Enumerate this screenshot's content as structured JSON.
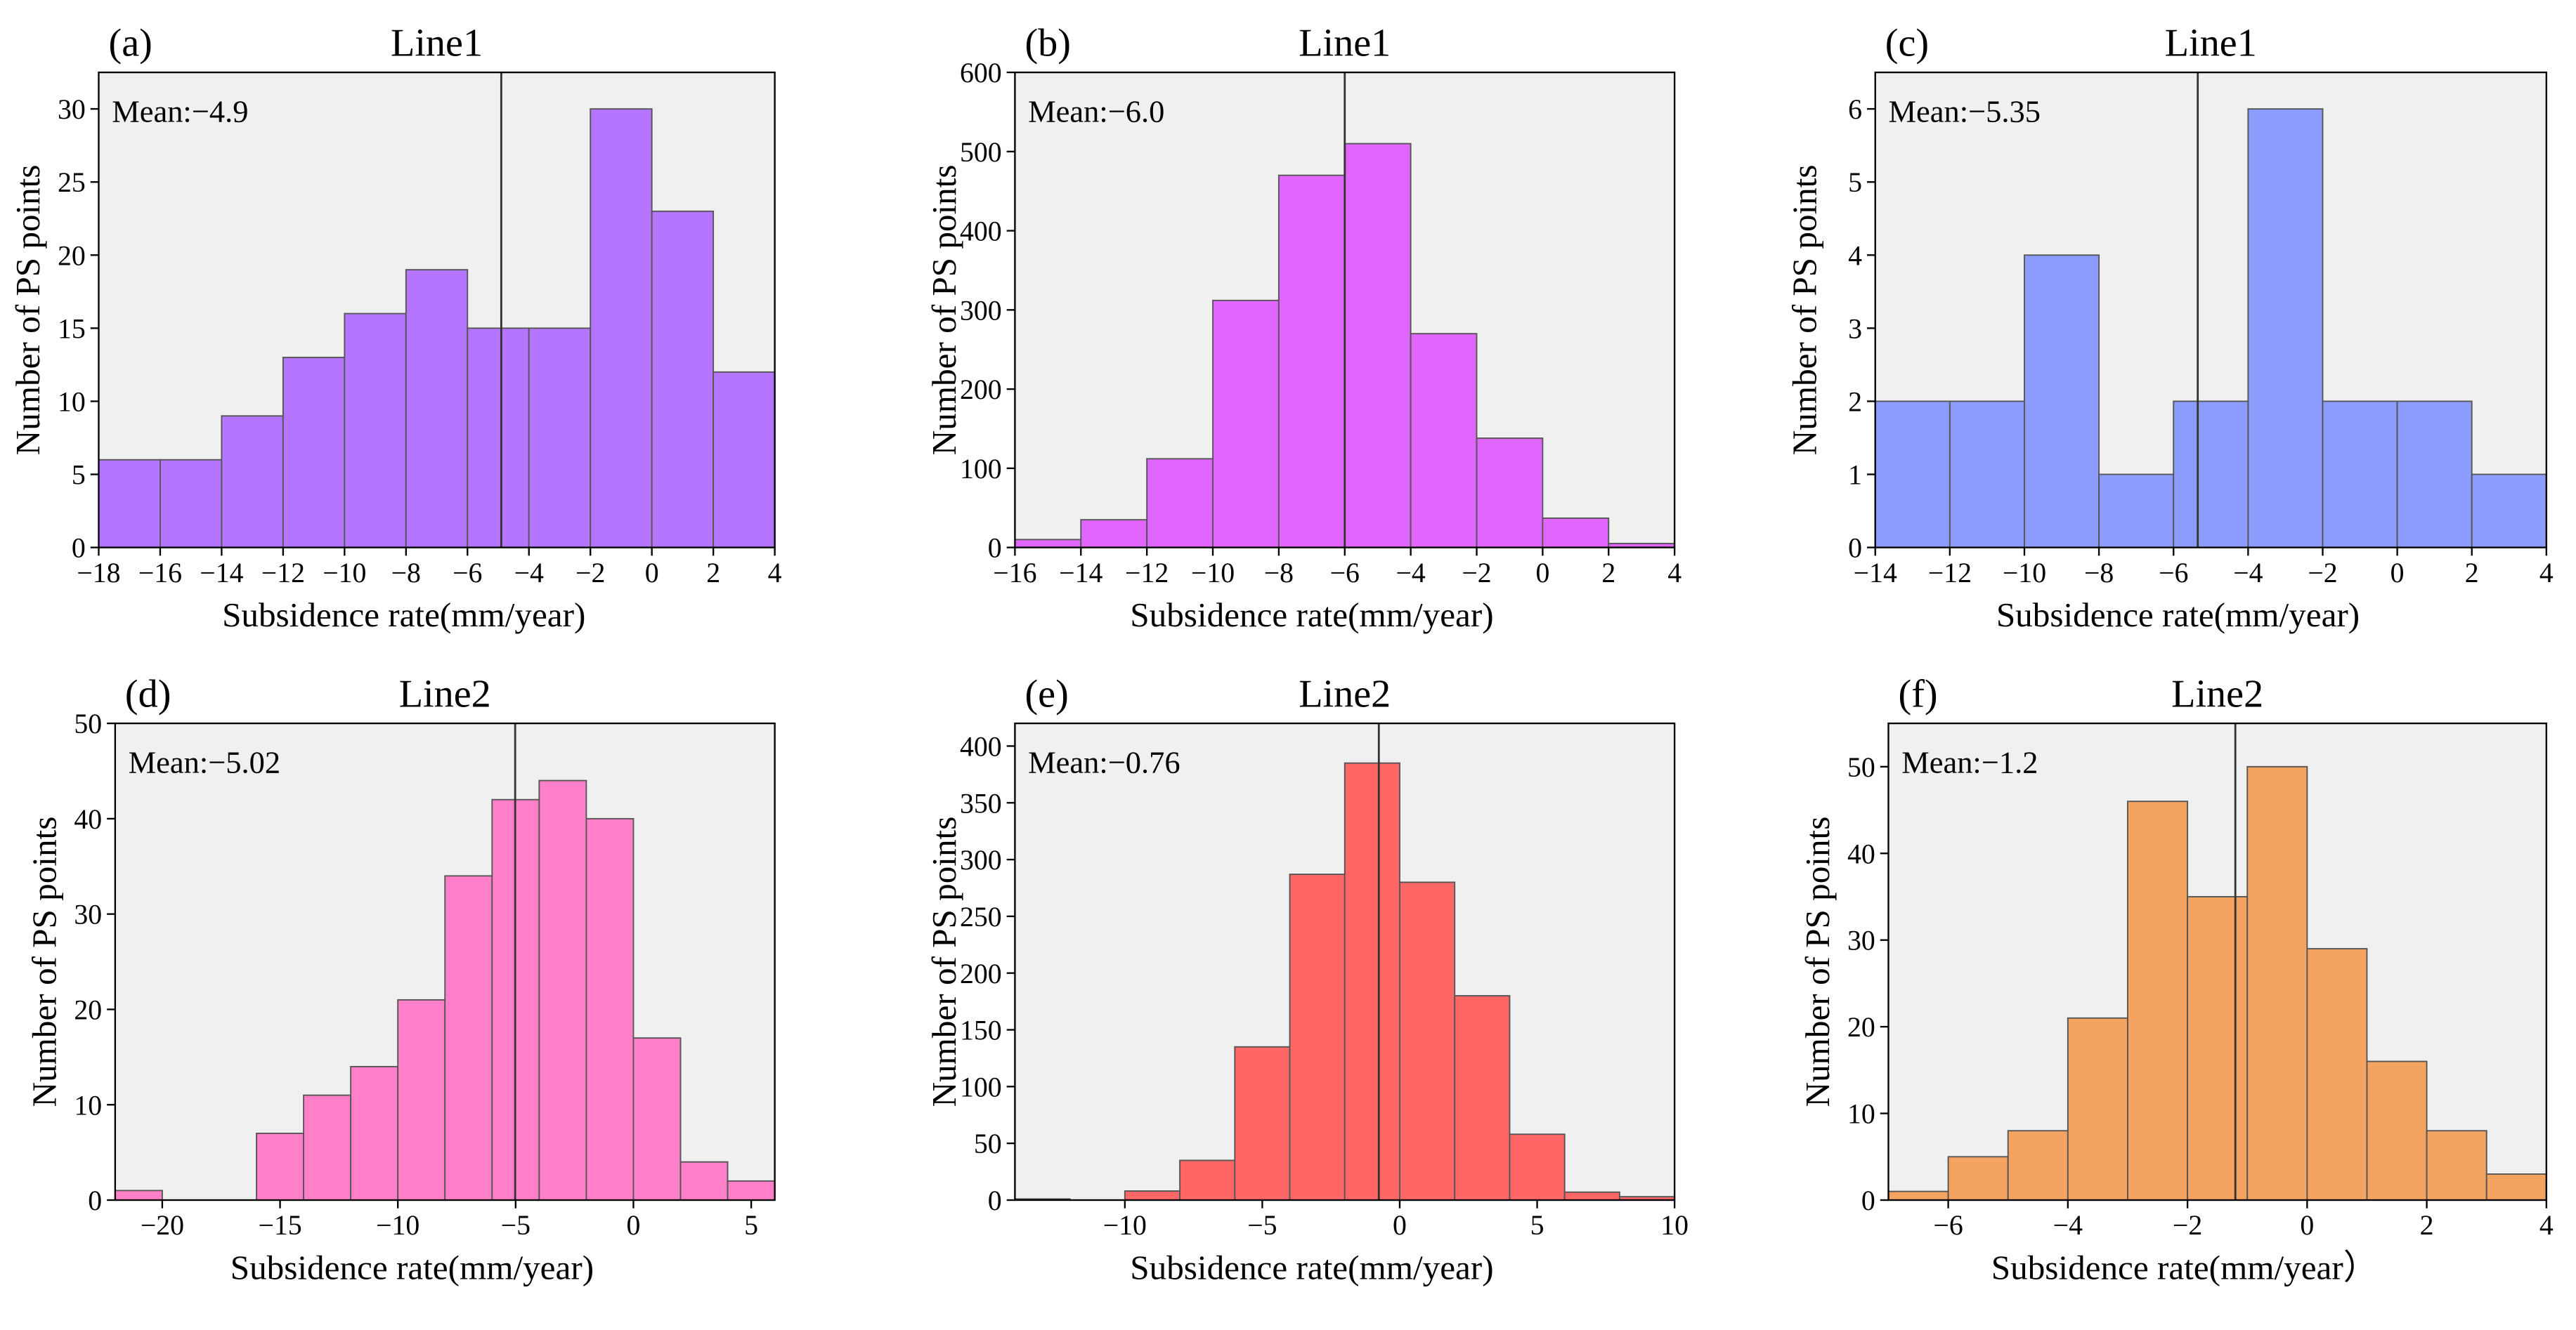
{
  "chart_data": [
    {
      "type": "histogram",
      "panel_label": "(a)",
      "title": "Line1",
      "x_label": "Subsidence rate(mm/year)",
      "y_label": "Number of PS points",
      "mean": -4.9,
      "mean_label": "Mean:−4.9",
      "color": "#b575ff",
      "bins": [
        -18,
        -16,
        -14,
        -12,
        -10,
        -8,
        -6,
        -4,
        -2,
        0,
        2,
        4
      ],
      "values": [
        6,
        6,
        9,
        13,
        16,
        19,
        15,
        15,
        30,
        23,
        12
      ],
      "xlim": [
        -18,
        4
      ],
      "xticks": [
        {
          "value": -18,
          "label": "−18"
        },
        {
          "value": -16,
          "label": "−16"
        },
        {
          "value": -14,
          "label": "−14"
        },
        {
          "value": -12,
          "label": "−12"
        },
        {
          "value": -10,
          "label": "−10"
        },
        {
          "value": -8,
          "label": "−8"
        },
        {
          "value": -6,
          "label": "−6"
        },
        {
          "value": -4,
          "label": "−4"
        },
        {
          "value": -2,
          "label": "−2"
        },
        0,
        2,
        4
      ],
      "ylim": [
        0,
        32.5
      ],
      "yticks": [
        0,
        5,
        10,
        15,
        20,
        25,
        30
      ]
    },
    {
      "type": "histogram",
      "panel_label": "(b)",
      "title": "Line1",
      "x_label": "Subsidence rate(mm/year)",
      "y_label": "Number of PS points",
      "mean": -6.0,
      "mean_label": "Mean:−6.0",
      "color": "#e066ff",
      "bins": [
        -16,
        -14,
        -12,
        -10,
        -8,
        -6,
        -4,
        -2,
        0,
        2,
        4
      ],
      "values": [
        10,
        35,
        112,
        312,
        470,
        510,
        270,
        138,
        37,
        5
      ],
      "xlim": [
        -16,
        4
      ],
      "xticks": [
        {
          "value": -16,
          "label": "−16"
        },
        {
          "value": -14,
          "label": "−14"
        },
        {
          "value": -12,
          "label": "−12"
        },
        {
          "value": -10,
          "label": "−10"
        },
        {
          "value": -8,
          "label": "−8"
        },
        {
          "value": -6,
          "label": "−6"
        },
        {
          "value": -4,
          "label": "−4"
        },
        {
          "value": -2,
          "label": "−2"
        },
        0,
        2,
        4
      ],
      "ylim": [
        0,
        600
      ],
      "yticks": [
        0,
        100,
        200,
        300,
        400,
        500,
        600
      ]
    },
    {
      "type": "histogram",
      "panel_label": "(c)",
      "title": "Line1",
      "x_label": "Subsidence rate(mm/year)",
      "y_label": "Number of PS points",
      "mean": -5.35,
      "mean_label": "Mean:−5.35",
      "color": "#8c9cff",
      "bins": [
        -14,
        -12,
        -10,
        -8,
        -6,
        -4,
        -2,
        0,
        2,
        4
      ],
      "values": [
        2,
        2,
        4,
        1,
        2,
        6,
        2,
        2,
        1
      ],
      "xlim": [
        -14,
        4
      ],
      "xticks": [
        {
          "value": -14,
          "label": "−14"
        },
        {
          "value": -12,
          "label": "−12"
        },
        {
          "value": -10,
          "label": "−10"
        },
        {
          "value": -8,
          "label": "−8"
        },
        {
          "value": -6,
          "label": "−6"
        },
        {
          "value": -4,
          "label": "−4"
        },
        {
          "value": -2,
          "label": "−2"
        },
        0,
        2,
        4
      ],
      "ylim": [
        0,
        6.5
      ],
      "yticks": [
        0,
        1,
        2,
        3,
        4,
        5,
        6
      ]
    },
    {
      "type": "histogram",
      "panel_label": "(d)",
      "title": "Line2",
      "x_label": "Subsidence rate(mm/year)",
      "y_label": "Number of PS points",
      "mean": -5.02,
      "mean_label": "Mean:−5.02",
      "color": "#ff80c8",
      "bins": [
        -22,
        -20,
        -18,
        -16,
        -14,
        -12,
        -10,
        -8,
        -6,
        -4,
        -2,
        0,
        2,
        4,
        6
      ],
      "values": [
        1,
        0,
        0,
        7,
        11,
        14,
        21,
        34,
        42,
        44,
        40,
        17,
        4,
        2
      ],
      "xlim": [
        -22,
        6
      ],
      "xticks": [
        {
          "value": -20,
          "label": "−20"
        },
        {
          "value": -15,
          "label": "−15"
        },
        {
          "value": -10,
          "label": "−10"
        },
        {
          "value": -5,
          "label": "−5"
        },
        0,
        5
      ],
      "ylim": [
        0,
        50
      ],
      "yticks": [
        0,
        10,
        20,
        30,
        40,
        50
      ]
    },
    {
      "type": "histogram",
      "panel_label": "(e)",
      "title": "Line2",
      "x_label": "Subsidence rate(mm/year)",
      "y_label": "Number of PS points",
      "mean": -0.76,
      "mean_label": "Mean:−0.76",
      "color": "#ff6666",
      "bins": [
        -14,
        -12,
        -10,
        -8,
        -6,
        -4,
        -2,
        0,
        2,
        4,
        6,
        8,
        10
      ],
      "values": [
        1,
        0,
        8,
        35,
        135,
        287,
        385,
        280,
        180,
        58,
        7,
        3
      ],
      "xlim": [
        -14,
        10
      ],
      "xticks": [
        {
          "value": -10,
          "label": "−10"
        },
        {
          "value": -5,
          "label": "−5"
        },
        0,
        5,
        10
      ],
      "ylim": [
        0,
        420
      ],
      "yticks": [
        0,
        50,
        100,
        150,
        200,
        250,
        300,
        350,
        400
      ]
    },
    {
      "type": "histogram",
      "panel_label": "(f)",
      "title": "Line2",
      "x_label": "Subsidence rate(mm/year）",
      "y_label": "Number of PS points",
      "mean": -1.2,
      "mean_label": "Mean:−1.2",
      "color": "#f4a460",
      "bins": [
        -7,
        -6,
        -5,
        -4,
        -3,
        -2,
        -1,
        0,
        1,
        2,
        3,
        4
      ],
      "values": [
        1,
        5,
        8,
        21,
        46,
        35,
        50,
        29,
        16,
        8,
        3
      ],
      "xlim": [
        -7,
        4
      ],
      "xticks": [
        {
          "value": -6,
          "label": "−6"
        },
        {
          "value": -4,
          "label": "−4"
        },
        {
          "value": -2,
          "label": "−2"
        },
        0,
        2,
        4
      ],
      "ylim": [
        0,
        55
      ],
      "yticks": [
        0,
        10,
        20,
        30,
        40,
        50
      ]
    }
  ]
}
